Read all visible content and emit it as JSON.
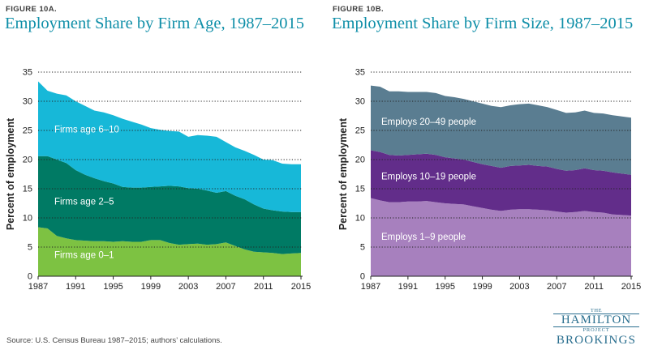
{
  "panels": {
    "a": {
      "label": "FIGURE 10A.",
      "title": "Employment Share by Firm Age, 1987–2015"
    },
    "b": {
      "label": "FIGURE 10B.",
      "title": "Employment Share by Firm Size, 1987–2015"
    }
  },
  "source": "Source: U.S. Census Bureau 1987–2015; authors’ calculations.",
  "logo": {
    "the": "THE",
    "hamilton": "HAMILTON",
    "project": "PROJECT",
    "brookings": "BROOKINGS"
  },
  "chart_data": [
    {
      "type": "area",
      "stacked": true,
      "title": "Employment Share by Firm Age, 1987–2015",
      "ylabel": "Percent of employment",
      "xlabel": "",
      "ylim": [
        0,
        35
      ],
      "yticks": [
        0,
        5,
        10,
        15,
        20,
        25,
        30,
        35
      ],
      "xlim": [
        1987,
        2015
      ],
      "xticks": [
        1987,
        1991,
        1995,
        1999,
        2003,
        2007,
        2011,
        2015
      ],
      "grid": "horizontal dotted",
      "x": [
        1987,
        1988,
        1989,
        1990,
        1991,
        1992,
        1993,
        1994,
        1995,
        1996,
        1997,
        1998,
        1999,
        2000,
        2001,
        2002,
        2003,
        2004,
        2005,
        2006,
        2007,
        2008,
        2009,
        2010,
        2011,
        2012,
        2013,
        2014,
        2015
      ],
      "series": [
        {
          "name": "Firms age 0–1",
          "color": "#7dc242",
          "values": [
            8.4,
            8.2,
            6.9,
            6.5,
            6.2,
            6.1,
            6.0,
            6.0,
            5.9,
            6.0,
            5.9,
            5.9,
            6.2,
            6.2,
            5.7,
            5.4,
            5.5,
            5.6,
            5.4,
            5.5,
            5.8,
            5.2,
            4.6,
            4.2,
            4.1,
            4.0,
            3.8,
            3.9,
            4.0
          ]
        },
        {
          "name": "Firms age 2–5",
          "color": "#007a64",
          "values": [
            12.2,
            12.4,
            13.1,
            12.9,
            12.0,
            11.3,
            10.8,
            10.3,
            10.0,
            9.3,
            9.3,
            9.3,
            9.1,
            9.2,
            9.8,
            10.0,
            9.6,
            9.4,
            9.3,
            8.8,
            8.8,
            8.6,
            8.6,
            8.1,
            7.5,
            7.3,
            7.3,
            7.1,
            7.0
          ]
        },
        {
          "name": "Firms age 6–10",
          "color": "#17b8d8",
          "values": [
            12.8,
            11.2,
            11.3,
            11.6,
            11.8,
            11.8,
            11.6,
            11.8,
            11.7,
            11.7,
            11.3,
            10.8,
            10.1,
            9.7,
            9.4,
            9.4,
            8.8,
            9.2,
            9.4,
            9.6,
            8.4,
            8.3,
            8.3,
            8.5,
            8.4,
            8.6,
            8.2,
            8.2,
            8.2
          ]
        }
      ]
    },
    {
      "type": "area",
      "stacked": true,
      "title": "Employment Share by Firm Size, 1987–2015",
      "ylabel": "Percent of employment",
      "xlabel": "",
      "ylim": [
        0,
        35
      ],
      "yticks": [
        0,
        5,
        10,
        15,
        20,
        25,
        30,
        35
      ],
      "xlim": [
        1987,
        2015
      ],
      "xticks": [
        1987,
        1991,
        1995,
        1999,
        2003,
        2007,
        2011,
        2015
      ],
      "grid": "horizontal dotted",
      "x": [
        1987,
        1988,
        1989,
        1990,
        1991,
        1992,
        1993,
        1994,
        1995,
        1996,
        1997,
        1998,
        1999,
        2000,
        2001,
        2002,
        2003,
        2004,
        2005,
        2006,
        2007,
        2008,
        2009,
        2010,
        2011,
        2012,
        2013,
        2014,
        2015
      ],
      "series": [
        {
          "name": "Employs 1–9 people",
          "color": "#a780be",
          "values": [
            13.4,
            13.0,
            12.7,
            12.7,
            12.8,
            12.8,
            12.9,
            12.7,
            12.5,
            12.4,
            12.3,
            12.0,
            11.7,
            11.4,
            11.2,
            11.4,
            11.5,
            11.5,
            11.4,
            11.3,
            11.1,
            10.9,
            11.0,
            11.2,
            11.0,
            10.9,
            10.6,
            10.5,
            10.4
          ]
        },
        {
          "name": "Employs 10–19 people",
          "color": "#622d8a",
          "values": [
            8.2,
            8.3,
            8.1,
            8.0,
            8.0,
            8.1,
            8.1,
            8.1,
            7.9,
            7.8,
            7.7,
            7.6,
            7.5,
            7.5,
            7.4,
            7.5,
            7.5,
            7.6,
            7.5,
            7.5,
            7.3,
            7.2,
            7.2,
            7.3,
            7.2,
            7.2,
            7.2,
            7.1,
            7.0
          ]
        },
        {
          "name": "Employs 20–49 people",
          "color": "#5a7d91",
          "values": [
            11.1,
            11.2,
            10.9,
            11.0,
            10.8,
            10.7,
            10.6,
            10.6,
            10.5,
            10.5,
            10.4,
            10.4,
            10.4,
            10.3,
            10.4,
            10.4,
            10.5,
            10.5,
            10.4,
            10.2,
            10.1,
            9.9,
            9.9,
            9.9,
            9.8,
            9.8,
            9.8,
            9.8,
            9.8
          ]
        }
      ]
    }
  ]
}
